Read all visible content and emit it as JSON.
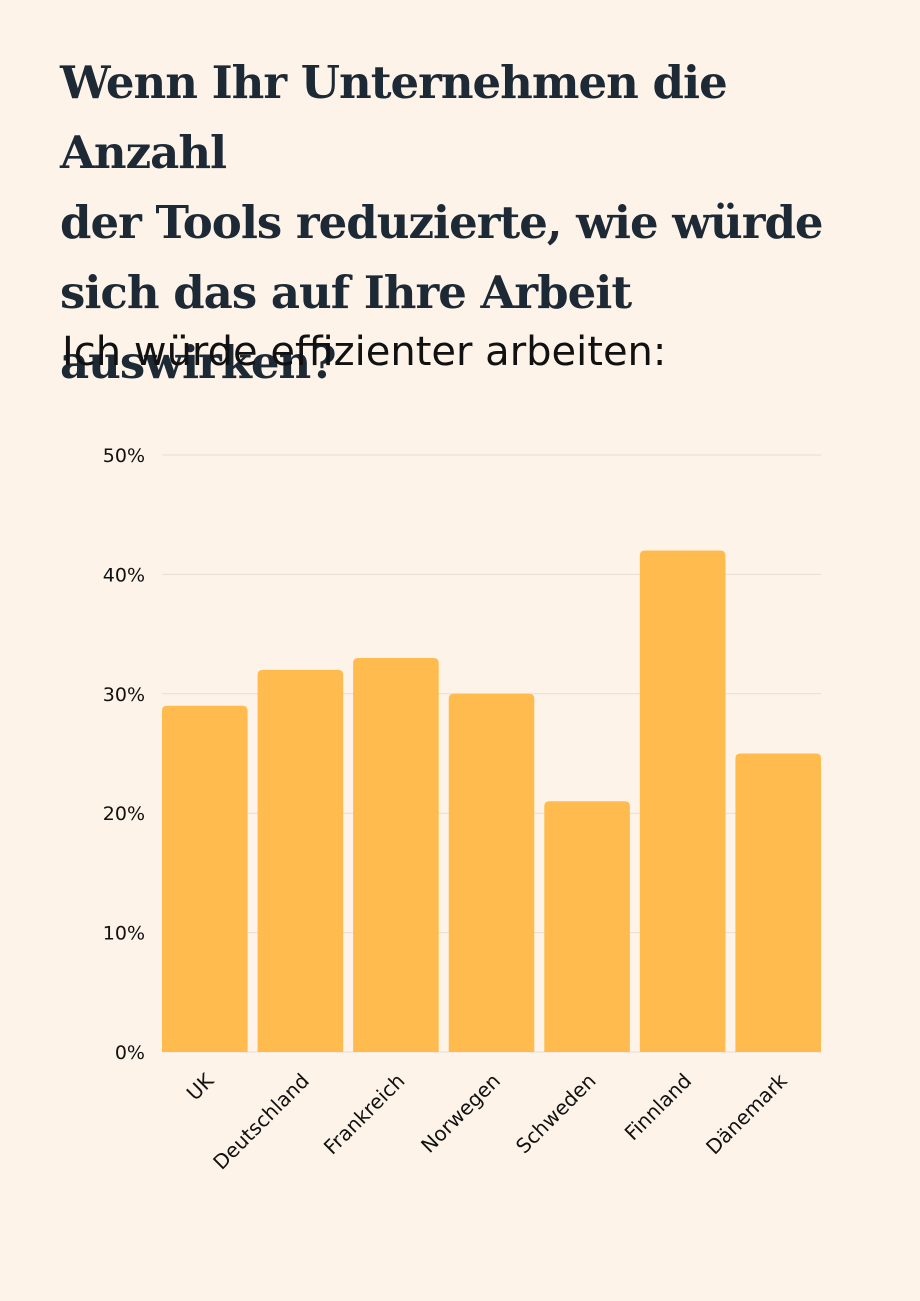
{
  "heading": {
    "line1": "Wenn Ihr Unternehmen die Anzahl",
    "line2": "der Tools reduzierte, wie würde",
    "line3": "sich das auf Ihre Arbeit auswirken?"
  },
  "chart_data": {
    "type": "bar",
    "title": "Ich würde effizienter arbeiten:",
    "categories": [
      "UK",
      "Deutschland",
      "Frankreich",
      "Norwegen",
      "Schweden",
      "Finnland",
      "Dänemark"
    ],
    "values": [
      29,
      32,
      33,
      30,
      21,
      42,
      25
    ],
    "y_ticks": [
      "0%",
      "10%",
      "20%",
      "30%",
      "40%",
      "50%"
    ],
    "ylim": [
      0,
      50
    ],
    "xlabel": "",
    "ylabel": "",
    "grid": true,
    "bar_color": "#ffbb4d",
    "grid_color": "#e8ddd2"
  }
}
